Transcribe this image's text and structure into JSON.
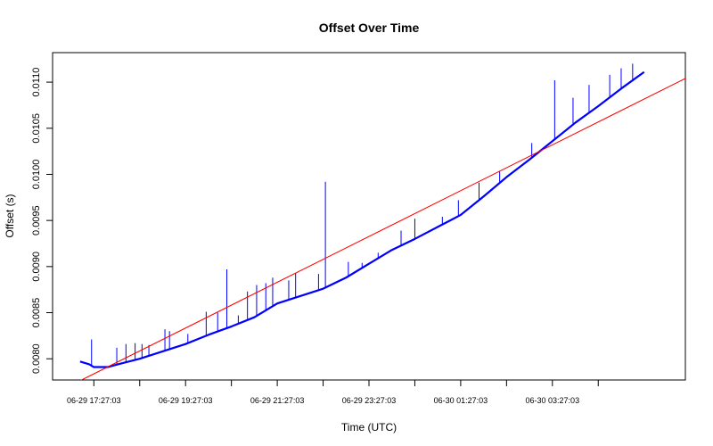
{
  "chart_data": {
    "type": "line",
    "title": "Offset Over Time",
    "xlabel": "Time (UTC)",
    "ylabel": "Offset (s)",
    "x_tick_labels": [
      "06-29 17:27:03",
      "06-29 19:27:03",
      "06-29 21:27:03",
      "06-29 23:27:03",
      "06-30 01:27:03",
      "06-30 03:27:03"
    ],
    "x_tick_hours": [
      0,
      2,
      4,
      6,
      8,
      10
    ],
    "x_minor_tick_hours": [
      1,
      3,
      5,
      7,
      9,
      11
    ],
    "x_range_hours": [
      -0.9,
      12.9
    ],
    "y_ticks": [
      0.008,
      0.0085,
      0.009,
      0.0095,
      0.01,
      0.0105,
      0.011
    ],
    "y_tick_labels": [
      "0.0080",
      "0.0085",
      "0.0090",
      "0.0095",
      "0.0100",
      "0.0105",
      "0.0110"
    ],
    "ylim": [
      0.00777,
      0.01132
    ],
    "grid": false,
    "series": [
      {
        "color": "#0000ff",
        "x_hours": [
          -0.3,
          -0.1,
          0.0,
          0.3,
          0.6,
          1.0,
          1.5,
          2.0,
          2.5,
          3.0,
          3.5,
          4.0,
          4.5,
          5.0,
          5.5,
          6.0,
          6.5,
          7.0,
          7.5,
          8.0,
          8.5,
          9.0,
          9.5,
          10.0,
          10.5,
          11.0,
          11.5,
          12.0
        ],
        "y": [
          0.00797,
          0.00794,
          0.00791,
          0.00791,
          0.00795,
          0.008,
          0.00808,
          0.00816,
          0.00826,
          0.00835,
          0.00845,
          0.0086,
          0.00868,
          0.00876,
          0.00888,
          0.00903,
          0.00918,
          0.0093,
          0.00943,
          0.00956,
          0.00976,
          0.00997,
          0.01016,
          0.01036,
          0.01056,
          0.01074,
          0.01093,
          0.01111
        ],
        "spikes": [
          {
            "x_hours": -0.05,
            "y": 0.00821
          },
          {
            "x_hours": 0.5,
            "y": 0.00812
          },
          {
            "x_hours": 0.7,
            "y": 0.00816
          },
          {
            "x_hours": 0.9,
            "y": 0.00817
          },
          {
            "x_hours": 1.05,
            "y": 0.00816
          },
          {
            "x_hours": 1.2,
            "y": 0.00815
          },
          {
            "x_hours": 1.55,
            "y": 0.00832
          },
          {
            "x_hours": 1.65,
            "y": 0.0083
          },
          {
            "x_hours": 2.05,
            "y": 0.00827
          },
          {
            "x_hours": 2.45,
            "y": 0.00851
          },
          {
            "x_hours": 2.7,
            "y": 0.0085
          },
          {
            "x_hours": 2.9,
            "y": 0.00897
          },
          {
            "x_hours": 3.15,
            "y": 0.00847
          },
          {
            "x_hours": 3.35,
            "y": 0.00873
          },
          {
            "x_hours": 3.55,
            "y": 0.0088
          },
          {
            "x_hours": 3.75,
            "y": 0.00882
          },
          {
            "x_hours": 3.9,
            "y": 0.00888
          },
          {
            "x_hours": 4.25,
            "y": 0.00885
          },
          {
            "x_hours": 4.4,
            "y": 0.00893
          },
          {
            "x_hours": 4.9,
            "y": 0.00892
          },
          {
            "x_hours": 5.05,
            "y": 0.00992
          },
          {
            "x_hours": 5.55,
            "y": 0.00905
          },
          {
            "x_hours": 5.85,
            "y": 0.00904
          },
          {
            "x_hours": 6.2,
            "y": 0.00915
          },
          {
            "x_hours": 6.7,
            "y": 0.00939
          },
          {
            "x_hours": 7.0,
            "y": 0.00952
          },
          {
            "x_hours": 7.6,
            "y": 0.00954
          },
          {
            "x_hours": 7.95,
            "y": 0.00972
          },
          {
            "x_hours": 8.4,
            "y": 0.00991
          },
          {
            "x_hours": 8.85,
            "y": 0.01003
          },
          {
            "x_hours": 9.55,
            "y": 0.01034
          },
          {
            "x_hours": 10.05,
            "y": 0.01102
          },
          {
            "x_hours": 10.45,
            "y": 0.01083
          },
          {
            "x_hours": 10.8,
            "y": 0.01097
          },
          {
            "x_hours": 11.25,
            "y": 0.01108
          },
          {
            "x_hours": 11.5,
            "y": 0.01115
          },
          {
            "x_hours": 11.75,
            "y": 0.0112
          }
        ]
      },
      {
        "color": "#ff0000",
        "x_hours": [
          -0.55,
          12.9
        ],
        "y": [
          0.0077,
          0.01104
        ]
      }
    ]
  }
}
